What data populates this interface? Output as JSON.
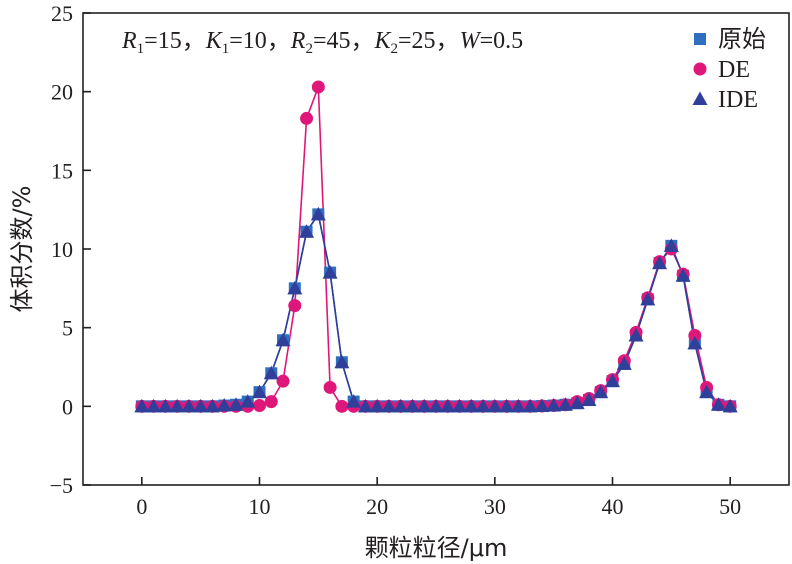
{
  "chart_data": {
    "type": "line",
    "xlabel": "颗粒粒径/μm",
    "ylabel": "体积分数/%",
    "xlim": [
      -5,
      55
    ],
    "ylim": [
      -5,
      25
    ],
    "x_ticks": [
      0,
      10,
      20,
      30,
      40,
      50
    ],
    "y_ticks": [
      -5,
      0,
      5,
      10,
      15,
      20,
      25
    ],
    "legend_position": "top-right",
    "annotation": {
      "parts": [
        {
          "text": "R",
          "italic": true
        },
        {
          "text": "1",
          "sub": true
        },
        {
          "text": "=15，"
        },
        {
          "text": "K",
          "italic": true
        },
        {
          "text": "1",
          "sub": true
        },
        {
          "text": "=10，"
        },
        {
          "text": "R",
          "italic": true
        },
        {
          "text": "2",
          "sub": true
        },
        {
          "text": "=45，"
        },
        {
          "text": "K",
          "italic": true
        },
        {
          "text": "2",
          "sub": true
        },
        {
          "text": "=25，"
        },
        {
          "text": "W",
          "italic": true
        },
        {
          "text": "=0.5"
        }
      ]
    },
    "x": [
      0,
      1,
      2,
      3,
      4,
      5,
      6,
      7,
      8,
      9,
      10,
      11,
      12,
      13,
      14,
      15,
      16,
      17,
      18,
      19,
      20,
      21,
      22,
      23,
      24,
      25,
      26,
      27,
      28,
      29,
      30,
      31,
      32,
      33,
      34,
      35,
      36,
      37,
      38,
      39,
      40,
      41,
      42,
      43,
      44,
      45,
      46,
      47,
      48,
      49,
      50
    ],
    "series": [
      {
        "name": "原始",
        "marker": "square",
        "color": "#2e6fc0",
        "values": [
          0,
          0,
          0,
          0,
          0,
          0,
          0,
          0.05,
          0.1,
          0.3,
          0.9,
          2.1,
          4.2,
          7.5,
          11.1,
          12.2,
          8.5,
          2.8,
          0.3,
          0,
          0,
          0,
          0,
          0,
          0,
          0,
          0,
          0,
          0,
          0,
          0,
          0,
          0,
          0,
          0.02,
          0.05,
          0.1,
          0.2,
          0.4,
          0.9,
          1.6,
          2.7,
          4.5,
          6.8,
          9.1,
          10.2,
          8.3,
          4.0,
          0.9,
          0.1,
          0
        ]
      },
      {
        "name": "DE",
        "marker": "circle",
        "color": "#e0177b",
        "values": [
          0,
          0,
          0,
          0,
          0,
          0,
          0,
          0,
          0,
          0,
          0.05,
          0.3,
          1.6,
          6.4,
          18.3,
          20.3,
          1.2,
          0,
          0,
          0,
          0,
          0,
          0,
          0,
          0,
          0,
          0,
          0,
          0,
          0,
          0,
          0,
          0,
          0,
          0.02,
          0.05,
          0.1,
          0.3,
          0.5,
          1.0,
          1.7,
          2.9,
          4.7,
          6.9,
          9.2,
          10.0,
          8.4,
          4.5,
          1.2,
          0.1,
          0
        ]
      },
      {
        "name": "IDE",
        "marker": "triangle",
        "color": "#2f3f9a",
        "values": [
          0,
          0,
          0,
          0,
          0,
          0,
          0,
          0.05,
          0.1,
          0.3,
          0.9,
          2.1,
          4.2,
          7.5,
          11.1,
          12.2,
          8.5,
          2.8,
          0.3,
          0,
          0,
          0,
          0,
          0,
          0,
          0,
          0,
          0,
          0,
          0,
          0,
          0,
          0,
          0,
          0.02,
          0.05,
          0.1,
          0.2,
          0.4,
          0.9,
          1.6,
          2.7,
          4.5,
          6.8,
          9.1,
          10.2,
          8.3,
          4.0,
          0.9,
          0.1,
          0
        ]
      }
    ]
  }
}
